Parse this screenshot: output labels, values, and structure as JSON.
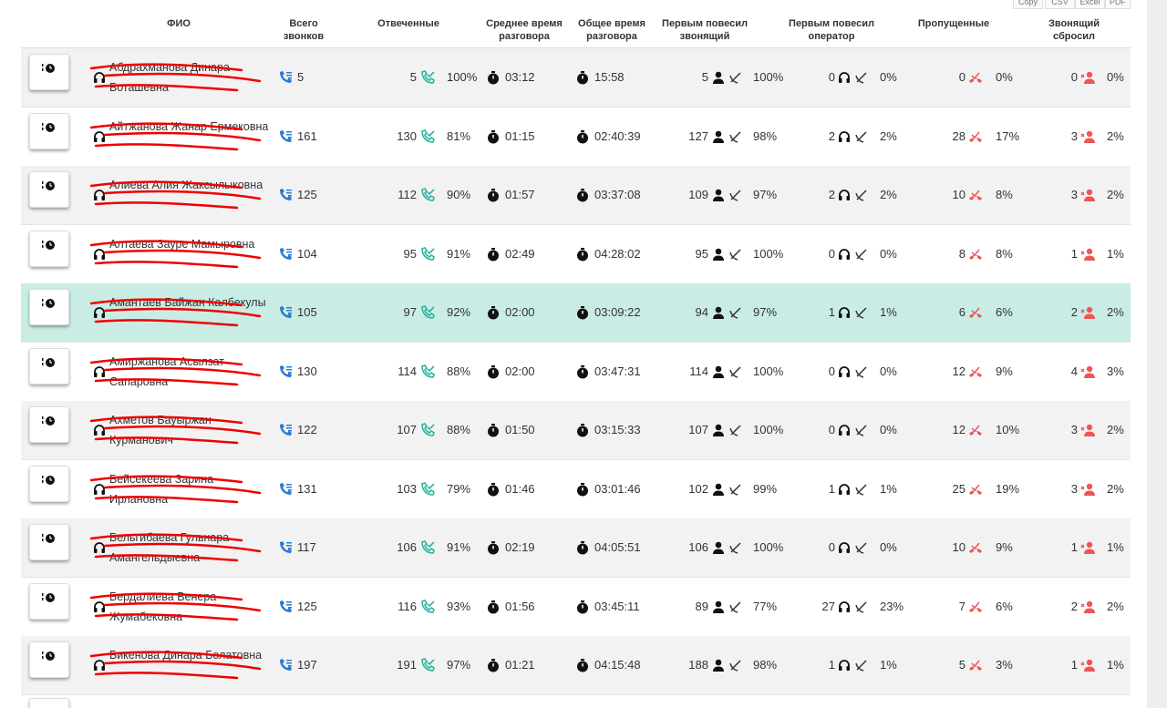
{
  "buttons": [
    "Copy",
    "CSV",
    "Excel",
    "PDF"
  ],
  "table": {
    "headers": [
      "ФИО",
      "Всего звонков",
      "Отвеченные",
      "Среднее время разговора",
      "Общее время разговора",
      "Первым повесил звонящий",
      "Первым повесил оператор",
      "Пропущенные",
      "Звонящий сбросил"
    ],
    "rows": [
      {
        "name": "Абдрахманова Динара Боташевна",
        "cells": [
          "5",
          "5",
          "100%",
          "03:12",
          "15:58",
          "5",
          "100%",
          "0",
          "0%",
          "0",
          "0%",
          "0",
          "0%"
        ]
      },
      {
        "name": "Айтжанова Жанар Ермековна",
        "cells": [
          "161",
          "130",
          "81%",
          "01:15",
          "02:40:39",
          "127",
          "98%",
          "2",
          "2%",
          "28",
          "17%",
          "3",
          "2%"
        ]
      },
      {
        "name": "Алиева Алия Жаксылыковна",
        "cells": [
          "125",
          "112",
          "90%",
          "01:57",
          "03:37:08",
          "109",
          "97%",
          "2",
          "2%",
          "10",
          "8%",
          "3",
          "2%"
        ]
      },
      {
        "name": "Алтаева Зауре Мамыровна",
        "cells": [
          "104",
          "95",
          "91%",
          "02:49",
          "04:28:02",
          "95",
          "100%",
          "0",
          "0%",
          "8",
          "8%",
          "1",
          "1%"
        ]
      },
      {
        "name": "Амантаев Байжан Калбекулы",
        "cells": [
          "105",
          "97",
          "92%",
          "02:00",
          "03:09:22",
          "94",
          "97%",
          "1",
          "1%",
          "6",
          "6%",
          "2",
          "2%"
        ]
      },
      {
        "name": "Амиржанова Асылзат Сапаровна",
        "cells": [
          "130",
          "114",
          "88%",
          "02:00",
          "03:47:31",
          "114",
          "100%",
          "0",
          "0%",
          "12",
          "9%",
          "4",
          "3%"
        ]
      },
      {
        "name": "Ахметов Бауыржан Курманович",
        "cells": [
          "122",
          "107",
          "88%",
          "01:50",
          "03:15:33",
          "107",
          "100%",
          "0",
          "0%",
          "12",
          "10%",
          "3",
          "2%"
        ]
      },
      {
        "name": "Бейсекеева Зарина Ирлановна",
        "cells": [
          "131",
          "103",
          "79%",
          "01:46",
          "03:01:46",
          "102",
          "99%",
          "1",
          "1%",
          "25",
          "19%",
          "3",
          "2%"
        ]
      },
      {
        "name": "Бельгибаева Гульнара Амангельдыевна",
        "cells": [
          "117",
          "106",
          "91%",
          "02:19",
          "04:05:51",
          "106",
          "100%",
          "0",
          "0%",
          "10",
          "9%",
          "1",
          "1%"
        ]
      },
      {
        "name": "Бердалиева Венера Жумабековна",
        "cells": [
          "125",
          "116",
          "93%",
          "01:56",
          "03:45:11",
          "89",
          "77%",
          "27",
          "23%",
          "7",
          "6%",
          "2",
          "2%"
        ]
      },
      {
        "name": "Бикенова Динара Болатовна",
        "cells": [
          "197",
          "191",
          "97%",
          "01:21",
          "04:15:48",
          "188",
          "98%",
          "1",
          "1%",
          "5",
          "3%",
          "1",
          "1%"
        ]
      }
    ]
  }
}
